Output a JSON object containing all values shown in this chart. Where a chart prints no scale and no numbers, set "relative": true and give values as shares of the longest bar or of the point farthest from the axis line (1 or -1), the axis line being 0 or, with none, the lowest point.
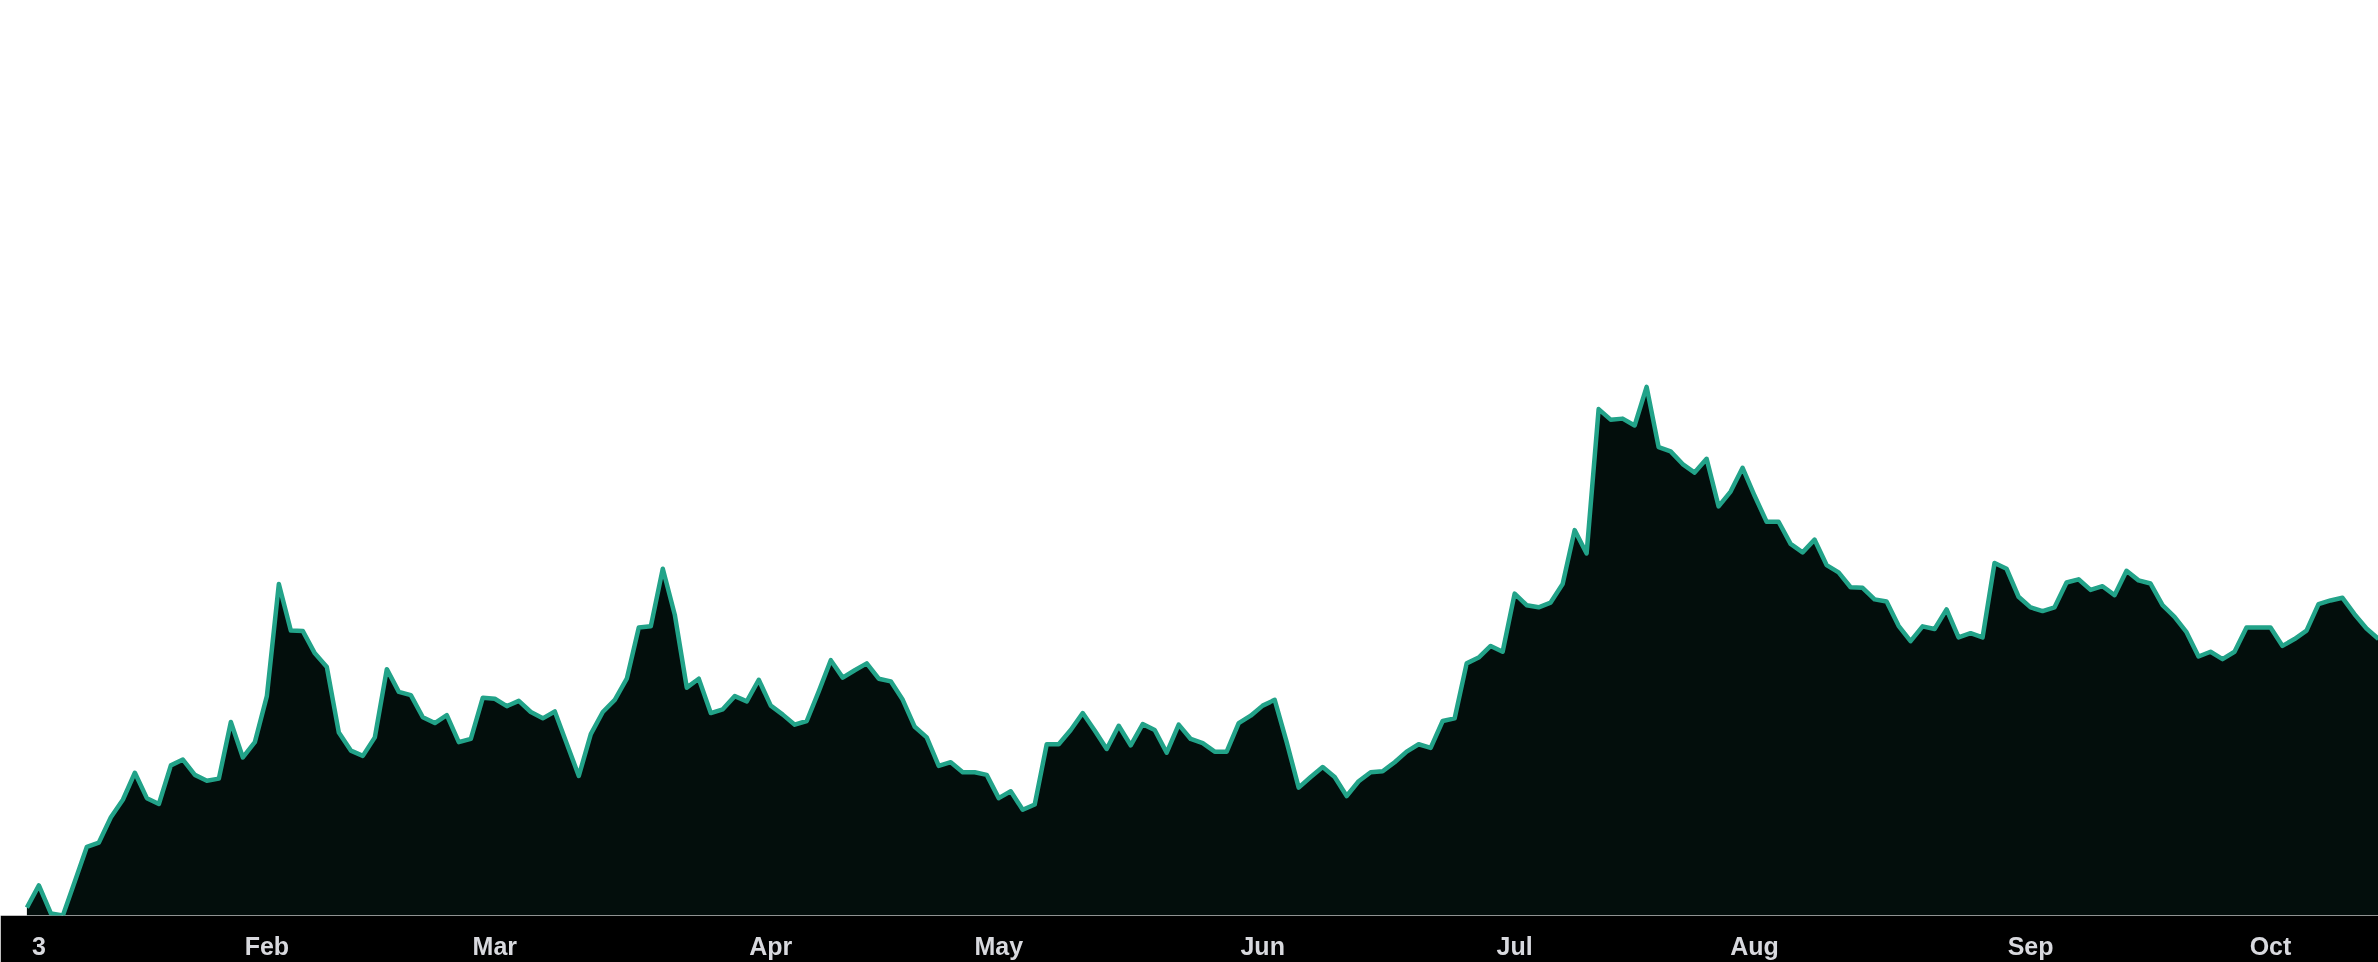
{
  "chart_data": {
    "type": "area",
    "relative": true,
    "color": "#22a389",
    "categories": [
      null,
      "3",
      null,
      null,
      null,
      null,
      null,
      null,
      null,
      null,
      null,
      null,
      null,
      null,
      null,
      null,
      null,
      null,
      null,
      null,
      "Feb",
      null,
      null,
      null,
      null,
      null,
      null,
      null,
      null,
      null,
      null,
      null,
      null,
      null,
      null,
      null,
      null,
      null,
      null,
      "Mar",
      null,
      null,
      null,
      null,
      null,
      null,
      null,
      null,
      null,
      null,
      null,
      null,
      null,
      null,
      null,
      null,
      null,
      null,
      null,
      null,
      null,
      null,
      "Apr",
      null,
      null,
      null,
      null,
      null,
      null,
      null,
      null,
      null,
      null,
      null,
      null,
      null,
      null,
      null,
      null,
      null,
      null,
      "May",
      null,
      null,
      null,
      null,
      null,
      null,
      null,
      null,
      null,
      null,
      null,
      null,
      null,
      null,
      null,
      null,
      null,
      null,
      null,
      null,
      null,
      "Jun",
      null,
      null,
      null,
      null,
      null,
      null,
      null,
      null,
      null,
      null,
      null,
      null,
      null,
      null,
      null,
      null,
      null,
      null,
      null,
      null,
      "Jul",
      null,
      null,
      null,
      null,
      null,
      null,
      null,
      null,
      null,
      null,
      null,
      null,
      null,
      null,
      null,
      null,
      null,
      null,
      null,
      "Aug",
      null,
      null,
      null,
      null,
      null,
      null,
      null,
      null,
      null,
      null,
      null,
      null,
      null,
      null,
      null,
      null,
      null,
      null,
      null,
      null,
      null,
      null,
      "Sep",
      null,
      null,
      null,
      null,
      null,
      null,
      null,
      null,
      null,
      null,
      null,
      null,
      null,
      null,
      null,
      null,
      null,
      null,
      null,
      "Oct",
      null,
      null,
      null,
      null,
      null,
      null,
      null,
      null,
      null
    ],
    "values": [
      0.015,
      0.057,
      0.004,
      0,
      0.065,
      0.13,
      0.138,
      0.186,
      0.219,
      0.27,
      0.222,
      0.211,
      0.284,
      0.295,
      0.266,
      0.255,
      0.259,
      0.366,
      0.299,
      0.328,
      0.415,
      0.627,
      0.539,
      0.538,
      0.496,
      0.47,
      0.346,
      0.312,
      0.302,
      0.337,
      0.466,
      0.423,
      0.417,
      0.375,
      0.364,
      0.379,
      0.328,
      0.334,
      0.412,
      0.41,
      0.396,
      0.406,
      0.385,
      0.373,
      0.386,
      0.325,
      0.264,
      0.343,
      0.385,
      0.408,
      0.448,
      0.545,
      0.547,
      0.656,
      0.569,
      0.431,
      0.448,
      0.383,
      0.39,
      0.415,
      0.405,
      0.446,
      0.397,
      0.38,
      0.361,
      0.368,
      0.424,
      0.483,
      0.45,
      0.464,
      0.477,
      0.448,
      0.443,
      0.408,
      0.357,
      0.337,
      0.283,
      0.29,
      0.271,
      0.271,
      0.266,
      0.222,
      0.235,
      0.2,
      0.21,
      0.324,
      0.324,
      0.351,
      0.383,
      0.35,
      0.315,
      0.359,
      0.322,
      0.362,
      0.351,
      0.308,
      0.361,
      0.334,
      0.326,
      0.31,
      0.31,
      0.364,
      0.378,
      0.397,
      0.408,
      0.328,
      0.242,
      0.262,
      0.281,
      0.262,
      0.226,
      0.254,
      0.271,
      0.273,
      0.29,
      0.31,
      0.324,
      0.317,
      0.368,
      0.373,
      0.477,
      0.488,
      0.51,
      0.499,
      0.609,
      0.587,
      0.583,
      0.592,
      0.627,
      0.729,
      0.685,
      0.958,
      0.938,
      0.94,
      0.927,
      1.0,
      0.886,
      0.878,
      0.854,
      0.838,
      0.864,
      0.774,
      0.802,
      0.847,
      0.794,
      0.745,
      0.745,
      0.703,
      0.687,
      0.711,
      0.663,
      0.649,
      0.621,
      0.62,
      0.598,
      0.594,
      0.548,
      0.519,
      0.547,
      0.542,
      0.579,
      0.526,
      0.534,
      0.526,
      0.667,
      0.656,
      0.603,
      0.583,
      0.576,
      0.583,
      0.63,
      0.636,
      0.616,
      0.623,
      0.606,
      0.652,
      0.634,
      0.628,
      0.587,
      0.565,
      0.536,
      0.49,
      0.499,
      0.485,
      0.499,
      0.545,
      0.545,
      0.545,
      0.51,
      0.523,
      0.539,
      0.589,
      0.596,
      0.601,
      0.57,
      0.543,
      0.523
    ]
  }
}
